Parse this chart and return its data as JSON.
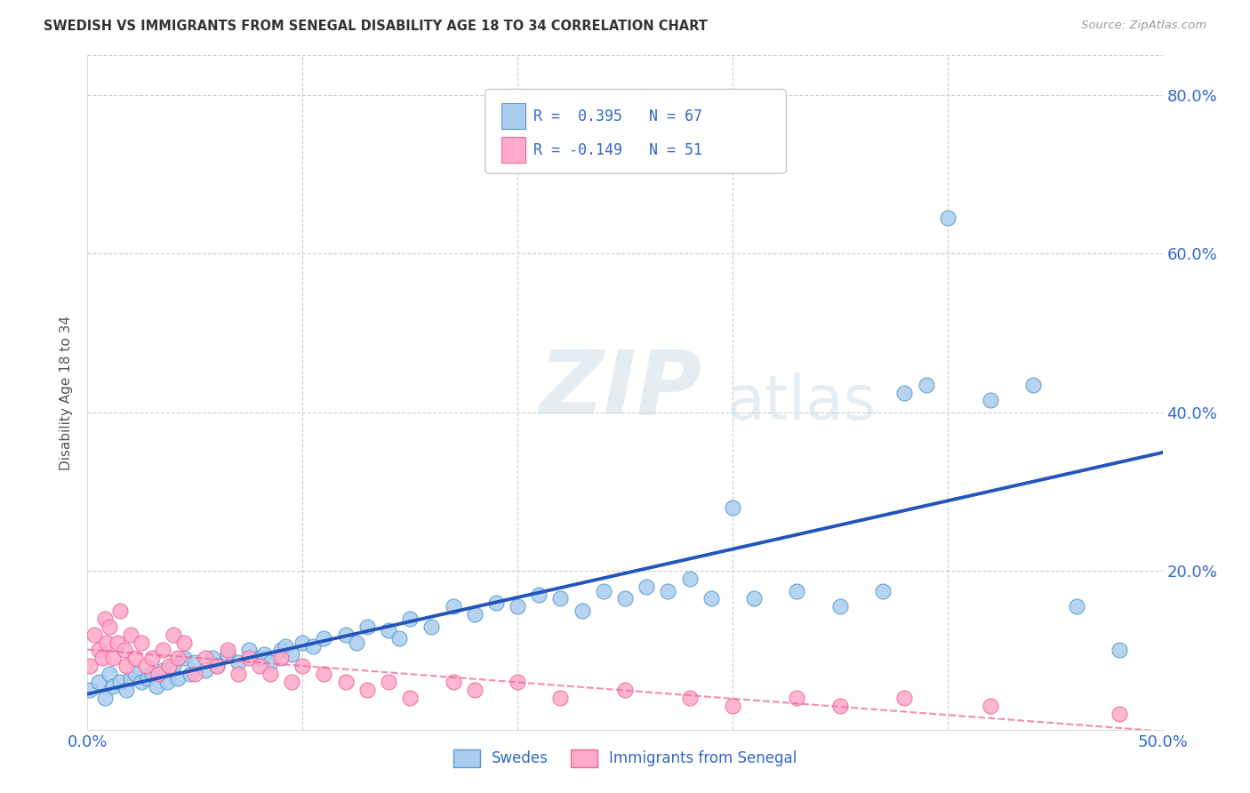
{
  "title": "SWEDISH VS IMMIGRANTS FROM SENEGAL DISABILITY AGE 18 TO 34 CORRELATION CHART",
  "source": "Source: ZipAtlas.com",
  "ylabel": "Disability Age 18 to 34",
  "xlim": [
    0.0,
    0.5
  ],
  "ylim": [
    0.0,
    0.85
  ],
  "xticks": [
    0.0,
    0.1,
    0.2,
    0.3,
    0.4,
    0.5
  ],
  "yticks": [
    0.0,
    0.2,
    0.4,
    0.6,
    0.8
  ],
  "grid_color": "#cccccc",
  "background_color": "#ffffff",
  "watermark_zip": "ZIP",
  "watermark_atlas": "atlas",
  "swedes_color": "#aaccee",
  "swedes_edge_color": "#5599cc",
  "senegal_color": "#ffaacc",
  "senegal_edge_color": "#ee6699",
  "swedes_line_color": "#2255bb",
  "senegal_line_color": "#ee6699",
  "legend_R_color": "#3366cc",
  "axis_label_color": "#3366cc",
  "title_color": "#333333",
  "swedes_R": 0.395,
  "swedes_N": 67,
  "senegal_R": -0.149,
  "senegal_N": 51,
  "swedes_scatter_x": [
    0.001,
    0.005,
    0.008,
    0.01,
    0.012,
    0.015,
    0.018,
    0.02,
    0.022,
    0.025,
    0.028,
    0.03,
    0.032,
    0.035,
    0.037,
    0.04,
    0.042,
    0.045,
    0.048,
    0.05,
    0.055,
    0.058,
    0.06,
    0.065,
    0.07,
    0.075,
    0.08,
    0.082,
    0.085,
    0.09,
    0.092,
    0.095,
    0.1,
    0.105,
    0.11,
    0.12,
    0.125,
    0.13,
    0.14,
    0.145,
    0.15,
    0.16,
    0.17,
    0.18,
    0.19,
    0.2,
    0.21,
    0.22,
    0.23,
    0.24,
    0.25,
    0.26,
    0.27,
    0.28,
    0.29,
    0.3,
    0.31,
    0.33,
    0.35,
    0.37,
    0.38,
    0.39,
    0.4,
    0.42,
    0.44,
    0.46,
    0.48
  ],
  "swedes_scatter_y": [
    0.05,
    0.06,
    0.04,
    0.07,
    0.055,
    0.06,
    0.05,
    0.065,
    0.07,
    0.06,
    0.065,
    0.07,
    0.055,
    0.075,
    0.06,
    0.08,
    0.065,
    0.09,
    0.07,
    0.085,
    0.075,
    0.09,
    0.08,
    0.095,
    0.085,
    0.1,
    0.09,
    0.095,
    0.085,
    0.1,
    0.105,
    0.095,
    0.11,
    0.105,
    0.115,
    0.12,
    0.11,
    0.13,
    0.125,
    0.115,
    0.14,
    0.13,
    0.155,
    0.145,
    0.16,
    0.155,
    0.17,
    0.165,
    0.15,
    0.175,
    0.165,
    0.18,
    0.175,
    0.19,
    0.165,
    0.28,
    0.165,
    0.175,
    0.155,
    0.175,
    0.425,
    0.435,
    0.645,
    0.415,
    0.435,
    0.155,
    0.1
  ],
  "senegal_scatter_x": [
    0.001,
    0.003,
    0.005,
    0.007,
    0.008,
    0.009,
    0.01,
    0.012,
    0.014,
    0.015,
    0.017,
    0.018,
    0.02,
    0.022,
    0.025,
    0.027,
    0.03,
    0.033,
    0.035,
    0.038,
    0.04,
    0.042,
    0.045,
    0.05,
    0.055,
    0.06,
    0.065,
    0.07,
    0.075,
    0.08,
    0.085,
    0.09,
    0.095,
    0.1,
    0.11,
    0.12,
    0.13,
    0.14,
    0.15,
    0.17,
    0.18,
    0.2,
    0.22,
    0.25,
    0.28,
    0.3,
    0.33,
    0.35,
    0.38,
    0.42,
    0.48
  ],
  "senegal_scatter_y": [
    0.08,
    0.12,
    0.1,
    0.09,
    0.14,
    0.11,
    0.13,
    0.09,
    0.11,
    0.15,
    0.1,
    0.08,
    0.12,
    0.09,
    0.11,
    0.08,
    0.09,
    0.07,
    0.1,
    0.08,
    0.12,
    0.09,
    0.11,
    0.07,
    0.09,
    0.08,
    0.1,
    0.07,
    0.09,
    0.08,
    0.07,
    0.09,
    0.06,
    0.08,
    0.07,
    0.06,
    0.05,
    0.06,
    0.04,
    0.06,
    0.05,
    0.06,
    0.04,
    0.05,
    0.04,
    0.03,
    0.04,
    0.03,
    0.04,
    0.03,
    0.02
  ]
}
